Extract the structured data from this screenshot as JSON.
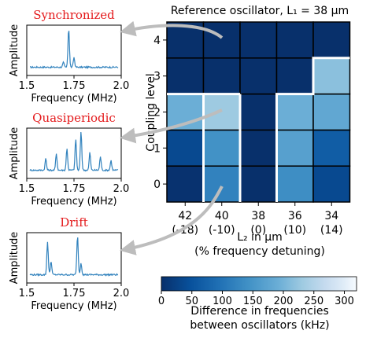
{
  "figure": {
    "main_title": "Reference oscillator, L₁ = 38 μm",
    "ylabel": "Coupling level",
    "xlabel_line1": "L₂ in μm",
    "xlabel_line2": "(% frequency detuning)",
    "colorbar_label_line1": "Difference in frequencies",
    "colorbar_label_line2": "between oscillators (kHz)"
  },
  "chart_data": [
    {
      "type": "heatmap",
      "title": "Reference oscillator, L₁ = 38 μm",
      "xlabel": "L₂ in μm (% frequency detuning)",
      "ylabel": "Coupling level",
      "x_categories": [
        "42",
        "40",
        "38",
        "36",
        "34"
      ],
      "x_sublabels": [
        "(-18)",
        "(-10)",
        "(0)",
        "(10)",
        "(14)"
      ],
      "y_categories": [
        "0",
        "1",
        "2",
        "3",
        "4"
      ],
      "values": [
        [
          3,
          100,
          0,
          115,
          30
        ],
        [
          30,
          120,
          0,
          140,
          55
        ],
        [
          160,
          200,
          0,
          160,
          150
        ],
        [
          0,
          0,
          0,
          0,
          185
        ],
        [
          0,
          0,
          0,
          0,
          0
        ]
      ],
      "colorbar": {
        "range": [
          0,
          320
        ],
        "ticks": [
          0,
          50,
          100,
          150,
          200,
          250,
          300
        ],
        "label": "Difference in frequencies between oscillators (kHz)",
        "colors": [
          "#08306b",
          "#08519c",
          "#2171b5",
          "#4292c6",
          "#6baed6",
          "#9ecae1",
          "#c6dbef",
          "#deebf7",
          "#f7fbff"
        ]
      }
    },
    {
      "type": "line",
      "title": "Synchronized",
      "title_color": "#e41a1c",
      "xlabel": "Frequency (MHz)",
      "ylabel": "Amplitude",
      "xlim": [
        1.5,
        2.0
      ],
      "xticks": [
        "1.5",
        "1.75",
        "2.0"
      ],
      "color": "#3182bd",
      "peaks": [
        {
          "x": 1.72,
          "y": 1.0
        },
        {
          "x": 1.75,
          "y": 0.25
        },
        {
          "x": 1.69,
          "y": 0.12
        }
      ]
    },
    {
      "type": "line",
      "title": "Quasiperiodic",
      "title_color": "#e41a1c",
      "xlabel": "Frequency (MHz)",
      "ylabel": "Amplitude",
      "xlim": [
        1.5,
        2.0
      ],
      "xticks": [
        "1.5",
        "1.75",
        "2.0"
      ],
      "color": "#3182bd",
      "peaks": [
        {
          "x": 1.59,
          "y": 0.3
        },
        {
          "x": 1.65,
          "y": 0.42
        },
        {
          "x": 1.71,
          "y": 0.55
        },
        {
          "x": 1.76,
          "y": 0.8
        },
        {
          "x": 1.79,
          "y": 1.0
        },
        {
          "x": 1.84,
          "y": 0.45
        },
        {
          "x": 1.9,
          "y": 0.35
        },
        {
          "x": 1.96,
          "y": 0.25
        }
      ]
    },
    {
      "type": "line",
      "title": "Drift",
      "title_color": "#e41a1c",
      "xlabel": "Frequency (MHz)",
      "ylabel": "Amplitude",
      "xlim": [
        1.5,
        2.0
      ],
      "xticks": [
        "1.5",
        "1.75",
        "2.0"
      ],
      "color": "#3182bd",
      "peaks": [
        {
          "x": 1.6,
          "y": 0.85
        },
        {
          "x": 1.62,
          "y": 0.35
        },
        {
          "x": 1.77,
          "y": 1.0
        },
        {
          "x": 1.79,
          "y": 0.3
        }
      ]
    }
  ]
}
